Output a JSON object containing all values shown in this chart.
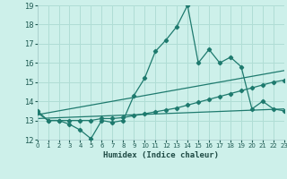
{
  "title": "",
  "xlabel": "Humidex (Indice chaleur)",
  "background_color": "#cdf0ea",
  "grid_color": "#b0ddd5",
  "line_color": "#1e7a6e",
  "x_min": 0,
  "x_max": 23,
  "y_min": 12,
  "y_max": 19,
  "x_ticks": [
    0,
    1,
    2,
    3,
    4,
    5,
    6,
    7,
    8,
    9,
    10,
    11,
    12,
    13,
    14,
    15,
    16,
    17,
    18,
    19,
    20,
    21,
    22,
    23
  ],
  "y_ticks": [
    12,
    13,
    14,
    15,
    16,
    17,
    18,
    19
  ],
  "series1_x": [
    0,
    1,
    2,
    3,
    4,
    5,
    6,
    7,
    8,
    9,
    10,
    11,
    12,
    13,
    14,
    15,
    16,
    17,
    18,
    19,
    20,
    21,
    22,
    23
  ],
  "series1_y": [
    13.5,
    13.0,
    13.0,
    12.8,
    12.5,
    12.05,
    13.0,
    12.9,
    13.0,
    14.3,
    15.2,
    16.6,
    17.2,
    17.9,
    19.0,
    16.0,
    16.7,
    16.0,
    16.3,
    15.8,
    13.6,
    14.0,
    13.6,
    13.5
  ],
  "series2_x": [
    0,
    1,
    2,
    3,
    4,
    5,
    6,
    7,
    8,
    9,
    10,
    11,
    12,
    13,
    14,
    15,
    16,
    17,
    18,
    19,
    20,
    21,
    22,
    23
  ],
  "series2_y": [
    13.4,
    13.0,
    13.0,
    13.0,
    13.0,
    13.0,
    13.1,
    13.1,
    13.15,
    13.25,
    13.35,
    13.45,
    13.55,
    13.65,
    13.8,
    13.95,
    14.1,
    14.25,
    14.4,
    14.55,
    14.7,
    14.85,
    15.0,
    15.1
  ],
  "series3_x": [
    0,
    23
  ],
  "series3_y": [
    13.3,
    15.6
  ],
  "series4_x": [
    0,
    23
  ],
  "series4_y": [
    13.1,
    13.6
  ]
}
